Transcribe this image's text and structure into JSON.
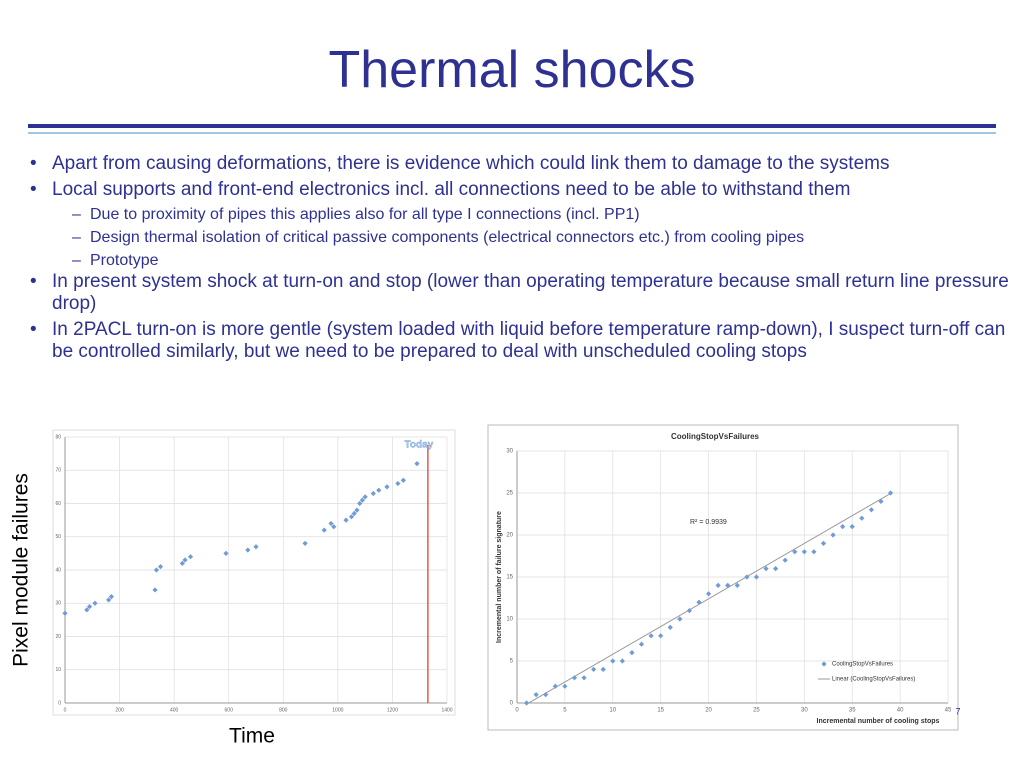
{
  "title": "Thermal shocks",
  "bullets": [
    {
      "text": "Apart from causing deformations, there is evidence which could link them to damage to the systems"
    },
    {
      "text": "Local supports and front-end electronics incl. all connections need to be able to withstand them",
      "sub": [
        "Due to proximity of pipes this applies also for all type I connections (incl. PP1)",
        "Design thermal isolation of critical passive components (electrical connectors etc.) from cooling pipes",
        "Prototype"
      ]
    },
    {
      "text": "In present system shock at turn-on and stop (lower than operating temperature because small return line pressure drop)"
    },
    {
      "text": "In 2PACL turn-on is more gentle (system loaded with liquid before temperature ramp-down), I suspect turn-off can be controlled similarly, but we need to be prepared to deal with unscheduled cooling stops"
    }
  ],
  "page_number": "7",
  "chart_data": [
    {
      "type": "scatter",
      "xlabel": "Time",
      "ylabel": "Pixel module failures",
      "x": [
        0,
        80,
        90,
        110,
        160,
        170,
        330,
        335,
        350,
        430,
        440,
        460,
        590,
        670,
        700,
        880,
        950,
        975,
        985,
        1030,
        1050,
        1060,
        1070,
        1080,
        1090,
        1100,
        1130,
        1150,
        1180,
        1220,
        1240,
        1290
      ],
      "series": [
        {
          "color": "#6f9bd6",
          "values": [
            27,
            28,
            29,
            30,
            31,
            32,
            34,
            40,
            41,
            42,
            43,
            44,
            45,
            46,
            47,
            48,
            52,
            54,
            53,
            55,
            56,
            57,
            58,
            60,
            61,
            62,
            63,
            64,
            65,
            66,
            67,
            72
          ]
        }
      ],
      "xlim": [
        0,
        1400
      ],
      "xticks": [
        0,
        200,
        400,
        600,
        800,
        1000,
        1200,
        1400
      ],
      "ylim": [
        0,
        80
      ],
      "yticks": [
        0,
        10,
        20,
        30,
        40,
        50,
        60,
        70,
        80
      ],
      "grid": true,
      "today": {
        "x": 1330,
        "label": "Today",
        "color": "#e0301e"
      }
    },
    {
      "type": "scatter",
      "title": "CoolingStopVsFailures",
      "xlabel": "Incremental number of cooling stops",
      "ylabel": "Incremental number of failure signature",
      "x": [
        1,
        2,
        3,
        4,
        5,
        6,
        7,
        8,
        9,
        10,
        11,
        12,
        13,
        14,
        15,
        16,
        17,
        18,
        19,
        20,
        21,
        22,
        23,
        24,
        25,
        26,
        27,
        28,
        29,
        30,
        31,
        32,
        33,
        34,
        35,
        36,
        37,
        38,
        39
      ],
      "series": [
        {
          "name": "CoolingStopVsFailures",
          "color": "#6f9bd6",
          "values": [
            0,
            1,
            1,
            2,
            2,
            3,
            3,
            4,
            4,
            5,
            5,
            6,
            7,
            8,
            8,
            9,
            10,
            11,
            12,
            13,
            14,
            14,
            14,
            15,
            15,
            16,
            16,
            17,
            18,
            18,
            18,
            19,
            20,
            21,
            21,
            22,
            23,
            24,
            25
          ]
        }
      ],
      "trendline": {
        "name": "Linear (CoolingStopVsFailures)",
        "slope": 0.66,
        "intercept": -0.8,
        "color": "#999999"
      },
      "annotation": "R² = 0.9939",
      "xlim": [
        0,
        45
      ],
      "xticks": [
        0,
        5,
        10,
        15,
        20,
        25,
        30,
        35,
        40,
        45
      ],
      "ylim": [
        0,
        30
      ],
      "yticks": [
        0,
        5,
        10,
        15,
        20,
        25,
        30
      ],
      "grid": true
    }
  ]
}
